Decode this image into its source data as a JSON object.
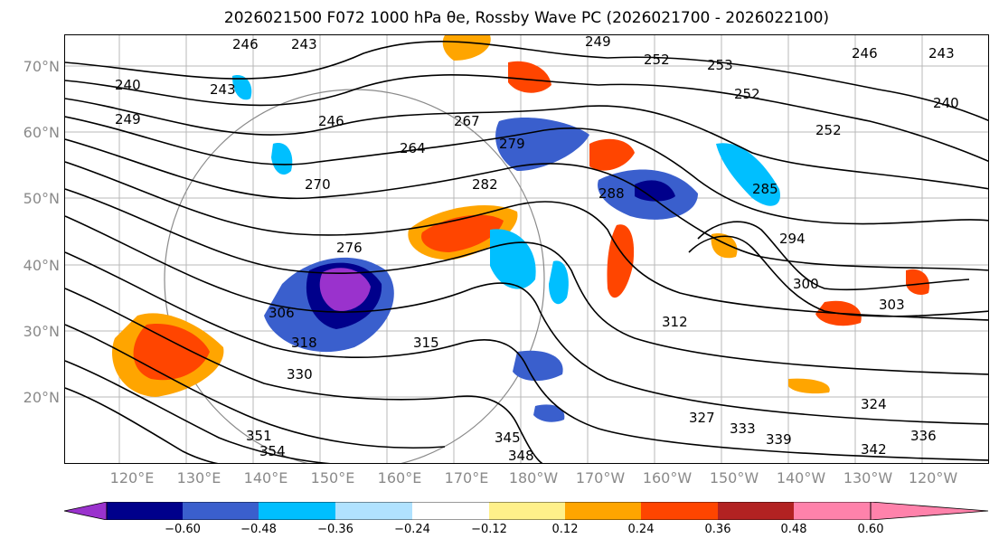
{
  "title": "2026021500 F072 1000 hPa θe, Rossby Wave PC (2026021700 - 2026022100)",
  "map": {
    "lat_labels": [
      "70°N",
      "60°N",
      "50°N",
      "40°N",
      "30°N",
      "20°N"
    ],
    "lon_labels": [
      "120°E",
      "130°E",
      "140°E",
      "150°E",
      "160°E",
      "170°E",
      "180°W",
      "170°W",
      "160°W",
      "150°W",
      "140°W",
      "130°W",
      "120°W"
    ],
    "contour_labels": [
      "246",
      "243",
      "249",
      "252",
      "253",
      "246",
      "243",
      "240",
      "249",
      "243",
      "240",
      "252",
      "246",
      "252",
      "264",
      "267",
      "270",
      "276",
      "279",
      "282",
      "285",
      "288",
      "294",
      "300",
      "303",
      "306",
      "312",
      "315",
      "318",
      "324",
      "327",
      "330",
      "333",
      "336",
      "339",
      "342",
      "345",
      "348",
      "351",
      "354"
    ]
  },
  "colorbar": {
    "colors": [
      "#9a32cd",
      "#00008b",
      "#3a5fcd",
      "#00bfff",
      "#b0e2ff",
      "#ffffff",
      "#fff08a",
      "#ffa500",
      "#ff4500",
      "#b22222",
      "#ff82ab"
    ],
    "tick_labels": [
      "−0.60",
      "−0.48",
      "−0.36",
      "−0.24",
      "−0.12",
      "0.12",
      "0.24",
      "0.36",
      "0.48",
      "0.60"
    ]
  }
}
